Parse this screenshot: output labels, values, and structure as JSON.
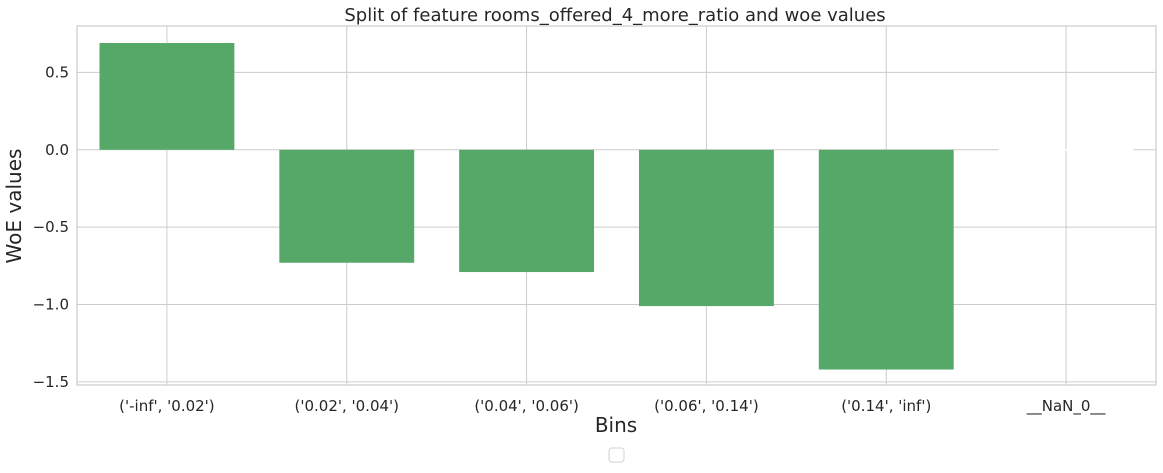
{
  "chart_data": {
    "type": "bar",
    "title": "Split of feature rooms_offered_4_more_ratio and woe values",
    "xlabel": "Bins",
    "ylabel": "WoE values",
    "categories": [
      "('-inf', '0.02')",
      "('0.02', '0.04')",
      "('0.04', '0.06')",
      "('0.06', '0.14')",
      "('0.14', 'inf')",
      "__NaN_0__"
    ],
    "values": [
      0.69,
      -0.73,
      -0.79,
      -1.01,
      -1.42,
      0.0
    ],
    "ylim": [
      -1.52,
      0.8
    ],
    "yticks": [
      0.5,
      0.0,
      -0.5,
      -1.0,
      -1.5
    ],
    "ytick_labels": [
      "0.5",
      "0.0",
      "−0.5",
      "−1.0",
      "−1.5"
    ],
    "bar_color": "#55a868",
    "grid": true,
    "legend": {
      "placement": "bottom-center",
      "entries": []
    }
  }
}
